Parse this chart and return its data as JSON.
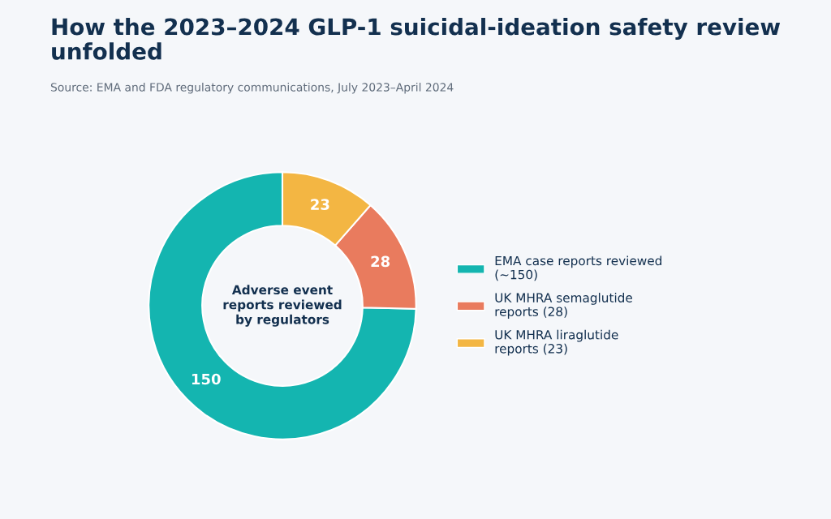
{
  "chart_data": {
    "type": "donut",
    "title": "How the 2023–2024 GLP-1 suicidal-ideation safety review unfolded",
    "subtitle": "Source: EMA and FDA regulatory communications, July 2023–April 2024",
    "categories": [
      "EMA case reports reviewed (~150)",
      "UK MHRA semaglutide reports (28)",
      "UK MHRA liraglutide reports (23)"
    ],
    "values": [
      150,
      28,
      23
    ],
    "colors": [
      "#14b5b0",
      "#e97b5e",
      "#f3b643"
    ],
    "data_labels": true,
    "legend": "right",
    "annotations": [
      "Adverse event reports reviewed by regulators"
    ]
  }
}
